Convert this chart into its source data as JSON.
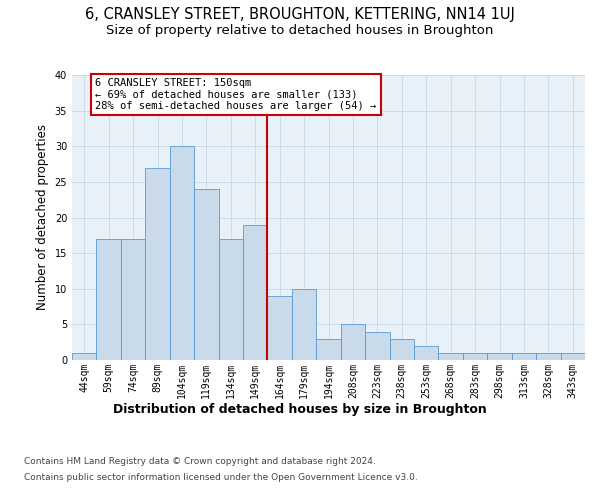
{
  "title": "6, CRANSLEY STREET, BROUGHTON, KETTERING, NN14 1UJ",
  "subtitle": "Size of property relative to detached houses in Broughton",
  "xlabel_bottom": "Distribution of detached houses by size in Broughton",
  "ylabel": "Number of detached properties",
  "categories": [
    "44sqm",
    "59sqm",
    "74sqm",
    "89sqm",
    "104sqm",
    "119sqm",
    "134sqm",
    "149sqm",
    "164sqm",
    "179sqm",
    "194sqm",
    "208sqm",
    "223sqm",
    "238sqm",
    "253sqm",
    "268sqm",
    "283sqm",
    "298sqm",
    "313sqm",
    "328sqm",
    "343sqm"
  ],
  "values": [
    1,
    17,
    17,
    27,
    30,
    24,
    17,
    19,
    9,
    10,
    3,
    5,
    4,
    3,
    2,
    1,
    1,
    1,
    1,
    1,
    1
  ],
  "bar_color": "#c9daea",
  "bar_edge_color": "#5b9bd5",
  "bar_width": 1.0,
  "vline_index": 7.5,
  "vline_color": "#cc0000",
  "vline_lw": 1.5,
  "annotation_line1": "6 CRANSLEY STREET: 150sqm",
  "annotation_line2": "← 69% of detached houses are smaller (133)",
  "annotation_line3": "28% of semi-detached houses are larger (54) →",
  "annotation_box_color": "#cc0000",
  "ylim": [
    0,
    40
  ],
  "yticks": [
    0,
    5,
    10,
    15,
    20,
    25,
    30,
    35,
    40
  ],
  "grid_color": "#c8d8e8",
  "background_color": "#e8f0f8",
  "footer_line1": "Contains HM Land Registry data © Crown copyright and database right 2024.",
  "footer_line2": "Contains public sector information licensed under the Open Government Licence v3.0.",
  "title_fontsize": 10.5,
  "subtitle_fontsize": 9.5,
  "ylabel_fontsize": 8.5,
  "tick_fontsize": 7.0,
  "annotation_fontsize": 7.5,
  "xlabel_fontsize": 9.0,
  "footer_fontsize": 6.5
}
